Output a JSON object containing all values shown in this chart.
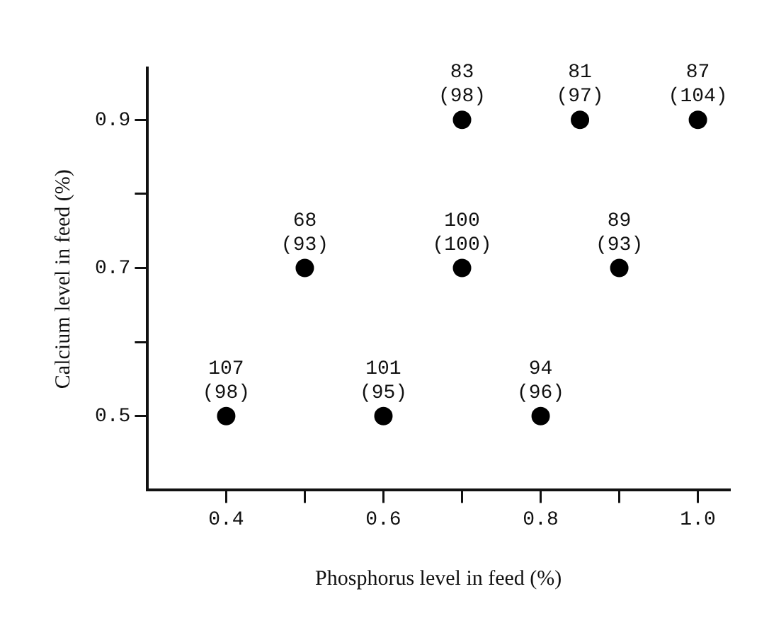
{
  "chart_data": {
    "type": "scatter",
    "xlabel": "Phosphorus level in feed (%)",
    "ylabel": "Calcium level in feed (%)",
    "xlim": [
      0.3,
      1.04
    ],
    "ylim": [
      0.4,
      0.97
    ],
    "xticks": [
      0.4,
      {
        "value": 0.5,
        "label": null
      },
      0.6,
      {
        "value": 0.7,
        "label": null
      },
      0.8,
      {
        "value": 0.9,
        "label": null
      },
      {
        "value": 1.0,
        "label": "1.0"
      }
    ],
    "yticks": [
      0.5,
      {
        "value": 0.6,
        "label": null
      },
      0.7,
      {
        "value": 0.8,
        "label": null
      },
      0.9
    ],
    "grid": false,
    "legend": false,
    "marker": "circle",
    "series": [
      {
        "color": "#000000",
        "x": [
          0.4,
          0.6,
          0.8,
          0.5,
          0.7,
          0.9,
          0.7,
          0.85,
          1.0
        ],
        "values": [
          0.5,
          0.5,
          0.5,
          0.7,
          0.7,
          0.7,
          0.9,
          0.9,
          0.9
        ],
        "value_labels": [
          "107\n(98)",
          "101\n(95)",
          "94\n(96)",
          "68\n(93)",
          "100\n(100)",
          "89\n(93)",
          "83\n(98)",
          "81\n(97)",
          "87\n(104)"
        ]
      }
    ]
  }
}
